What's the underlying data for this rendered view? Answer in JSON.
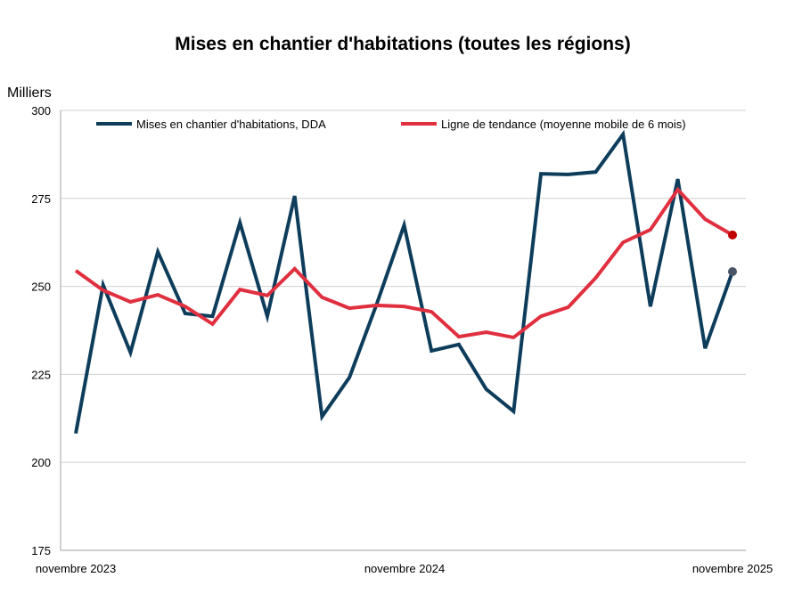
{
  "chart_data": {
    "type": "line",
    "title": "Mises en chantier d'habitations (toutes les régions)",
    "ylabel": "Milliers",
    "xlabel": "",
    "ylim": [
      175,
      300
    ],
    "yticks": [
      175,
      200,
      225,
      250,
      275,
      300
    ],
    "x_tick_labels": [
      "novembre 2023",
      "novembre 2024",
      "novembre 2025"
    ],
    "grid": true,
    "legend_position": "top",
    "x": [
      "2023-11",
      "2023-12",
      "2024-01",
      "2024-02",
      "2024-03",
      "2024-04",
      "2024-05",
      "2024-06",
      "2024-07",
      "2024-08",
      "2024-09",
      "2024-10",
      "2024-11",
      "2024-12",
      "2025-01",
      "2025-02",
      "2025-03",
      "2025-04",
      "2025-05",
      "2025-06",
      "2025-07",
      "2025-08",
      "2025-09",
      "2025-10",
      "2025-11"
    ],
    "series": [
      {
        "name": "Mises en chantier d'habitations, DDA",
        "color": "#0e3d5c",
        "end_marker_color": "#4a5568",
        "values": [
          208.2,
          250.4,
          231.2,
          259.8,
          242.3,
          241.5,
          268.1,
          241.5,
          275.7,
          213.0,
          224.1,
          245.0,
          267.4,
          231.7,
          233.5,
          220.8,
          214.5,
          282.0,
          281.8,
          282.5,
          293.2,
          244.3,
          280.5,
          232.4,
          254.2
        ]
      },
      {
        "name": "Ligne de tendance (moyenne mobile de 6 mois)",
        "color": "#e0303f",
        "end_marker_color": "#c00000",
        "values": [
          254.5,
          248.9,
          245.6,
          247.6,
          244.3,
          239.3,
          249.1,
          247.4,
          255.0,
          246.9,
          243.8,
          244.6,
          244.3,
          242.8,
          235.7,
          237.0,
          235.5,
          241.5,
          244.1,
          252.4,
          262.5,
          266.1,
          277.5,
          269.1,
          264.6
        ]
      }
    ]
  }
}
